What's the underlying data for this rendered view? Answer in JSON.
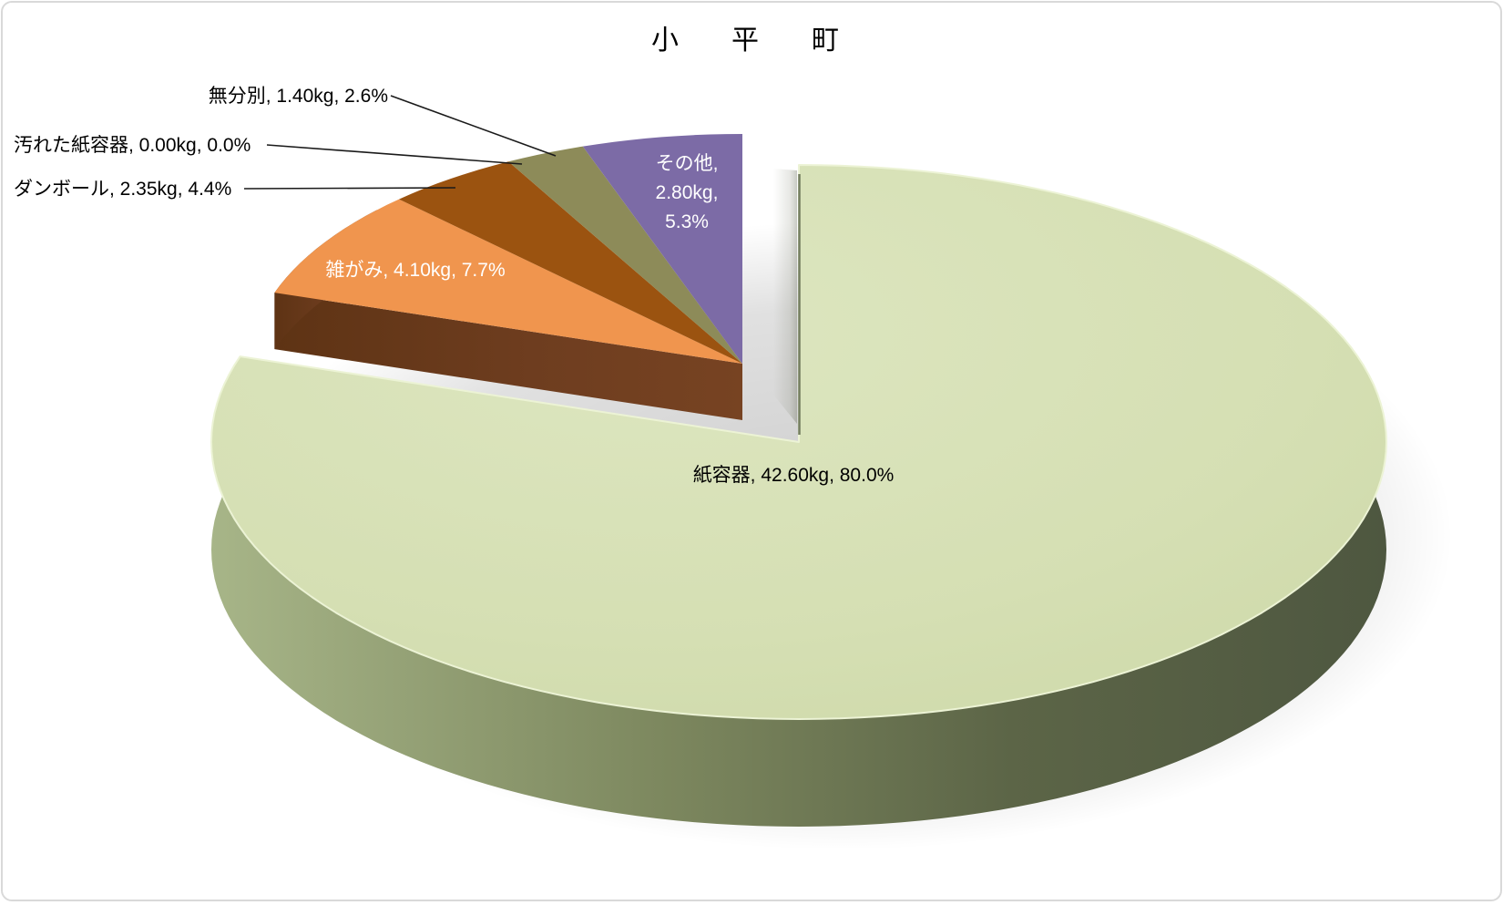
{
  "page": {
    "background": "#ffffff",
    "border_color": "#d9d9d9"
  },
  "chart_data": {
    "type": "pie",
    "style": "3d-exploded",
    "title": "小　平　町",
    "unit": "kg",
    "legend": "none",
    "label_format": "category, weight, percent",
    "slices": [
      {
        "label": "紙容器",
        "weight_kg": 42.6,
        "weight_text": "42.60kg",
        "percent_text": "80.0%",
        "percent": 80.0,
        "color": "#d6e0b4",
        "side_color": "#566044",
        "label_placement": "inside",
        "label_color": "#000000"
      },
      {
        "label": "雑がみ",
        "weight_kg": 4.1,
        "weight_text": "4.10kg",
        "percent_text": "7.7%",
        "percent": 7.7,
        "color": "#f0954e",
        "side_color": "#6e3d1f",
        "label_placement": "inside",
        "label_color": "#ffffff"
      },
      {
        "label": "ダンボール",
        "weight_kg": 2.35,
        "weight_text": "2.35kg",
        "percent_text": "4.4%",
        "percent": 4.4,
        "color": "#9b5310",
        "side_color": "#6e3d1f",
        "label_placement": "outside",
        "label_color": "#000000"
      },
      {
        "label": "汚れた紙容器",
        "weight_kg": 0.0,
        "weight_text": "0.00kg",
        "percent_text": "0.0%",
        "percent": 0.0,
        "label_placement": "outside",
        "label_color": "#000000"
      },
      {
        "label": "無分別",
        "weight_kg": 1.4,
        "weight_text": "1.40kg",
        "percent_text": "2.6%",
        "percent": 2.6,
        "color": "#8d8b59",
        "side_color": "#6e3d1f",
        "label_placement": "outside",
        "label_color": "#000000"
      },
      {
        "label": "その他",
        "weight_kg": 2.8,
        "weight_text": "2.80kg",
        "percent_text": "5.3%",
        "percent": 5.3,
        "color": "#7c6ba6",
        "side_color": "#6e3d1f",
        "label_placement": "inside",
        "label_color": "#ffffff",
        "multiline": true
      }
    ]
  }
}
